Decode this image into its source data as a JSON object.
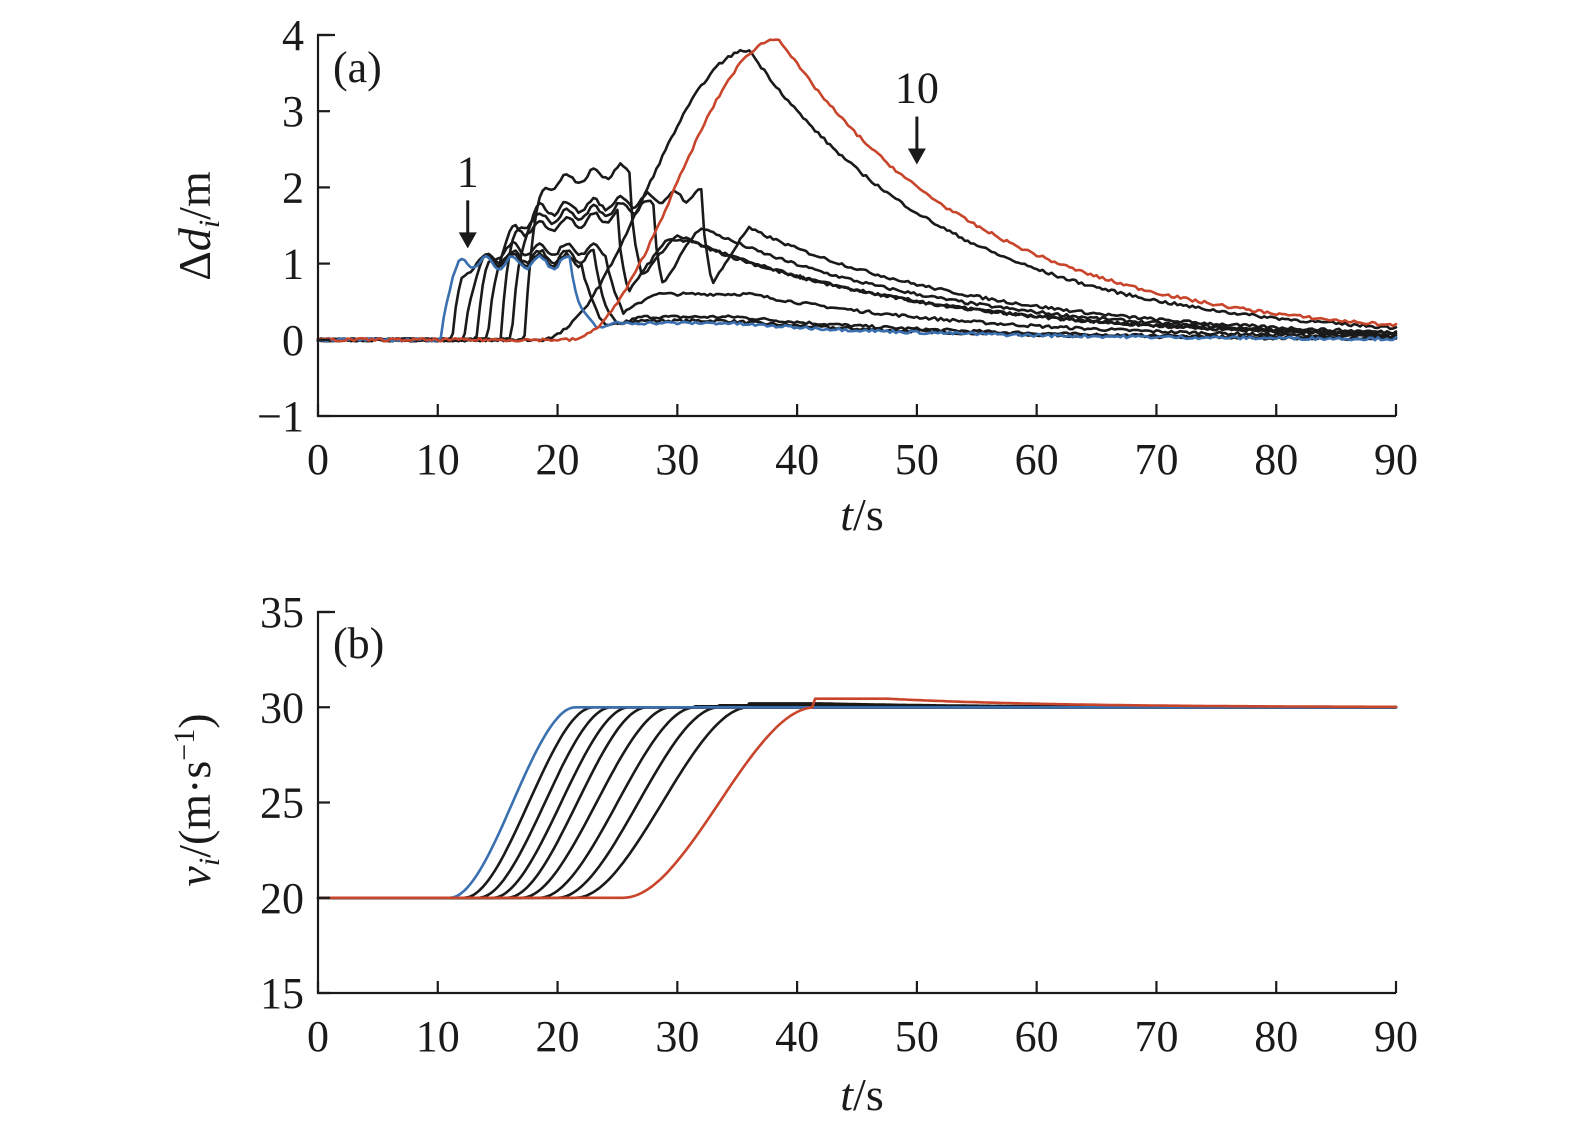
{
  "chart_data": [
    {
      "panel": "a",
      "type": "line",
      "panel_label": "(a)",
      "xlabel": {
        "italic": "t",
        "rest": "/s"
      },
      "ylabel": {
        "prefix": "Δ",
        "italic": "d",
        "sub": "i",
        "rest": "/m"
      },
      "xlim": [
        0,
        90
      ],
      "ylim": [
        -1,
        4
      ],
      "xticks": [
        "0",
        "10",
        "20",
        "30",
        "40",
        "50",
        "60",
        "70",
        "80",
        "90"
      ],
      "yticks": [
        "−1",
        "0",
        "1",
        "2",
        "3",
        "4"
      ],
      "grid": false,
      "annotations": [
        {
          "text": "1",
          "at": [
            12.5,
            1.2
          ]
        },
        {
          "text": "10",
          "at": [
            50,
            2.3
          ]
        }
      ],
      "colors": {
        "first": "#3a6fb0",
        "middle": "#1a1a1a",
        "last": "#c8452b"
      },
      "series": [
        {
          "color": "#3a6fb0",
          "onset": 10.2,
          "peak": 1.07,
          "peak_time": 12.5,
          "fall": 21.0,
          "late": 0.22,
          "late_time": 34
        },
        {
          "color": "#1a1a1a",
          "onset": 11.2,
          "peak": 1.1,
          "peak_time": 14.5,
          "fall": 22.0,
          "late": 0.25,
          "late_time": 34
        },
        {
          "color": "#1a1a1a",
          "onset": 12.2,
          "peak": 1.15,
          "peak_time": 16.5,
          "fall": 23.0,
          "late": 0.3,
          "late_time": 35
        },
        {
          "color": "#1a1a1a",
          "onset": 13.2,
          "peak": 1.25,
          "peak_time": 18.5,
          "fall": 24.0,
          "late": 0.6,
          "late_time": 36
        },
        {
          "color": "#1a1a1a",
          "onset": 14.2,
          "peak": 1.45,
          "peak_time": 22.0,
          "fall": 25.0,
          "late": 1.3,
          "late_time": 31
        },
        {
          "color": "#1a1a1a",
          "onset": 15.2,
          "peak": 1.6,
          "peak_time": 26.0,
          "fall": 28.0,
          "late": 1.55,
          "late_time": 31
        },
        {
          "color": "#1a1a1a",
          "onset": 16.2,
          "peak": 1.75,
          "peak_time": 30.0,
          "fall": 32.0,
          "late": 1.5,
          "late_time": 35.5
        },
        {
          "color": "#1a1a1a",
          "onset": 17.2,
          "peak": 2.1,
          "peak_time": 22.5,
          "fall": 26.0,
          "late": 1.6,
          "late_time": 27
        },
        {
          "color": "#1a1a1a",
          "onset": 18.5,
          "peak": 3.8,
          "peak_time": 36.0,
          "fall": 37.0,
          "late": 3.8,
          "late_time": 36
        },
        {
          "color": "#c8452b",
          "onset": 21.0,
          "peak": 3.95,
          "peak_time": 38.5,
          "fall": 39.0,
          "late": 3.95,
          "late_time": 38.5
        }
      ]
    },
    {
      "panel": "b",
      "type": "line",
      "panel_label": "(b)",
      "xlabel": {
        "italic": "t",
        "rest": "/s"
      },
      "ylabel": {
        "italic": "v",
        "sub": "i",
        "rest": "/(m·s",
        "sup": "−1",
        "close": ")"
      },
      "xlim": [
        0,
        90
      ],
      "ylim": [
        15,
        35
      ],
      "xticks": [
        "0",
        "10",
        "20",
        "30",
        "40",
        "50",
        "60",
        "70",
        "80",
        "90"
      ],
      "yticks": [
        "15",
        "20",
        "25",
        "30",
        "35"
      ],
      "grid": false,
      "colors": {
        "first": "#3a6fb0",
        "middle": "#1a1a1a",
        "last": "#c8452b"
      },
      "series": [
        {
          "color": "#3a6fb0",
          "start": 20,
          "end": 30,
          "rise_start": 11.0,
          "rise_end": 21.5,
          "overshoot": 0.0
        },
        {
          "color": "#1a1a1a",
          "start": 20,
          "end": 30,
          "rise_start": 12.2,
          "rise_end": 23.0,
          "overshoot": 0.0
        },
        {
          "color": "#1a1a1a",
          "start": 20,
          "end": 30,
          "rise_start": 13.4,
          "rise_end": 24.5,
          "overshoot": 0.0
        },
        {
          "color": "#1a1a1a",
          "start": 20,
          "end": 30,
          "rise_start": 14.6,
          "rise_end": 26.0,
          "overshoot": 0.0
        },
        {
          "color": "#1a1a1a",
          "start": 20,
          "end": 30,
          "rise_start": 15.8,
          "rise_end": 27.5,
          "overshoot": 0.0
        },
        {
          "color": "#1a1a1a",
          "start": 20,
          "end": 30,
          "rise_start": 17.0,
          "rise_end": 29.5,
          "overshoot": 0.0
        },
        {
          "color": "#1a1a1a",
          "start": 20,
          "end": 30,
          "rise_start": 18.5,
          "rise_end": 31.5,
          "overshoot": 0.05
        },
        {
          "color": "#1a1a1a",
          "start": 20,
          "end": 30,
          "rise_start": 20.0,
          "rise_end": 33.5,
          "overshoot": 0.1
        },
        {
          "color": "#1a1a1a",
          "start": 20,
          "end": 30,
          "rise_start": 21.5,
          "rise_end": 36.0,
          "overshoot": 0.2
        },
        {
          "color": "#c8452b",
          "start": 20,
          "end": 30,
          "rise_start": 25.5,
          "rise_end": 41.5,
          "overshoot": 0.45
        }
      ]
    }
  ]
}
